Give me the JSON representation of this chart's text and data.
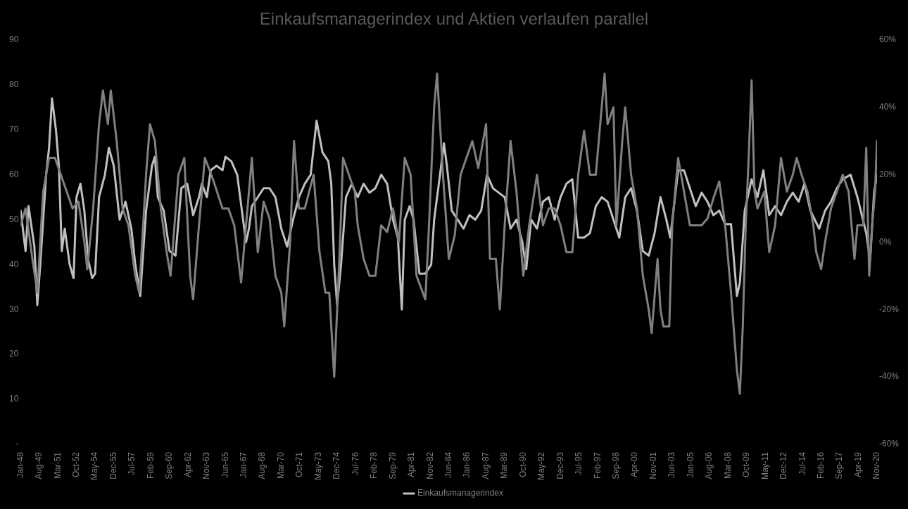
{
  "chart_data": {
    "type": "line",
    "title": "Einkaufsmanagerindex und Aktien verlaufen parallel",
    "legend": "bottom",
    "grid": false,
    "marker": "none",
    "line_style": "solid",
    "xlim": [
      "1948-01",
      "2020-11"
    ],
    "xticks": [
      {
        "value": "1948-01",
        "label": "Jan-48"
      },
      {
        "value": "1949-08",
        "label": "Aug-49"
      },
      {
        "value": "1951-03",
        "label": "Mar-51"
      },
      {
        "value": "1952-10",
        "label": "Oct-52"
      },
      {
        "value": "1954-05",
        "label": "May-54"
      },
      {
        "value": "1955-12",
        "label": "Dec-55"
      },
      {
        "value": "1957-07",
        "label": "Jul-57"
      },
      {
        "value": "1959-02",
        "label": "Feb-59"
      },
      {
        "value": "1960-09",
        "label": "Sep-60"
      },
      {
        "value": "1962-04",
        "label": "Apr-62"
      },
      {
        "value": "1963-11",
        "label": "Nov-63"
      },
      {
        "value": "1965-06",
        "label": "Jun-65"
      },
      {
        "value": "1967-01",
        "label": "Jan-67"
      },
      {
        "value": "1968-08",
        "label": "Aug-68"
      },
      {
        "value": "1970-03",
        "label": "Mar-70"
      },
      {
        "value": "1971-10",
        "label": "Oct-71"
      },
      {
        "value": "1973-05",
        "label": "May-73"
      },
      {
        "value": "1974-12",
        "label": "Dec-74"
      },
      {
        "value": "1976-07",
        "label": "Jul-76"
      },
      {
        "value": "1978-02",
        "label": "Feb-78"
      },
      {
        "value": "1979-09",
        "label": "Sep-79"
      },
      {
        "value": "1981-04",
        "label": "Apr-81"
      },
      {
        "value": "1982-11",
        "label": "Nov-82"
      },
      {
        "value": "1984-06",
        "label": "Jun-84"
      },
      {
        "value": "1986-01",
        "label": "Jan-86"
      },
      {
        "value": "1987-08",
        "label": "Aug-87"
      },
      {
        "value": "1989-03",
        "label": "Mar-89"
      },
      {
        "value": "1990-10",
        "label": "Oct-90"
      },
      {
        "value": "1992-05",
        "label": "May-92"
      },
      {
        "value": "1993-12",
        "label": "Dec-93"
      },
      {
        "value": "1995-07",
        "label": "Jul-95"
      },
      {
        "value": "1997-02",
        "label": "Feb-97"
      },
      {
        "value": "1998-09",
        "label": "Sep-98"
      },
      {
        "value": "2000-04",
        "label": "Apr-00"
      },
      {
        "value": "2001-11",
        "label": "Nov-01"
      },
      {
        "value": "2003-06",
        "label": "Jun-03"
      },
      {
        "value": "2005-01",
        "label": "Jan-05"
      },
      {
        "value": "2006-08",
        "label": "Aug-06"
      },
      {
        "value": "2008-03",
        "label": "Mar-08"
      },
      {
        "value": "2009-10",
        "label": "Oct-09"
      },
      {
        "value": "2011-05",
        "label": "May-11"
      },
      {
        "value": "2012-12",
        "label": "Dec-12"
      },
      {
        "value": "2014-07",
        "label": "Jul-14"
      },
      {
        "value": "2016-02",
        "label": "Feb-16"
      },
      {
        "value": "2017-09",
        "label": "Sep-17"
      },
      {
        "value": "2019-04",
        "label": "Apr-19"
      },
      {
        "value": "2020-11",
        "label": "Nov-20"
      }
    ],
    "ylim": [
      0,
      90
    ],
    "yticks": [
      {
        "value": 0,
        "label": "-"
      },
      10,
      20,
      30,
      40,
      50,
      60,
      70,
      80,
      90
    ],
    "y2lim": [
      -60,
      60
    ],
    "y2ticks": [
      {
        "value": -60,
        "label": "-60%"
      },
      {
        "value": -40,
        "label": "-40%"
      },
      {
        "value": -20,
        "label": "-20%"
      },
      {
        "value": 0,
        "label": "0%"
      },
      {
        "value": 20,
        "label": "20%"
      },
      {
        "value": 40,
        "label": "40%"
      },
      {
        "value": 60,
        "label": "60%"
      }
    ],
    "series": [
      {
        "name": "Einkaufsmanagerindex",
        "color": "#c0c0c0",
        "x": [
          "1948-01",
          "1948-06",
          "1948-09",
          "1949-03",
          "1949-06",
          "1949-09",
          "1950-03",
          "1950-06",
          "1950-09",
          "1951-01",
          "1951-04",
          "1951-07",
          "1951-10",
          "1952-03",
          "1952-07",
          "1952-10",
          "1953-02",
          "1953-06",
          "1953-10",
          "1954-02",
          "1954-05",
          "1954-09",
          "1955-03",
          "1955-07",
          "1955-12",
          "1956-06",
          "1956-12",
          "1957-06",
          "1957-10",
          "1958-03",
          "1958-09",
          "1959-03",
          "1959-06",
          "1959-09",
          "1960-03",
          "1960-09",
          "1961-03",
          "1961-09",
          "1962-03",
          "1962-09",
          "1963-03",
          "1963-06",
          "1963-11",
          "1964-03",
          "1964-09",
          "1965-03",
          "1965-06",
          "1965-12",
          "1966-06",
          "1966-09",
          "1967-03",
          "1967-06",
          "1967-09",
          "1968-03",
          "1968-09",
          "1969-03",
          "1969-09",
          "1970-03",
          "1970-09",
          "1971-03",
          "1971-09",
          "1972-03",
          "1972-09",
          "1973-01",
          "1973-03",
          "1973-09",
          "1974-03",
          "1974-06",
          "1974-09",
          "1974-12",
          "1975-04",
          "1975-09",
          "1976-03",
          "1976-09",
          "1977-03",
          "1977-09",
          "1978-03",
          "1978-09",
          "1979-03",
          "1979-09",
          "1980-02",
          "1980-06",
          "1980-09",
          "1981-02",
          "1981-06",
          "1981-12",
          "1982-06",
          "1982-12",
          "1983-03",
          "1983-09",
          "1984-01",
          "1984-04",
          "1984-09",
          "1985-03",
          "1985-09",
          "1986-03",
          "1986-09",
          "1987-03",
          "1987-09",
          "1988-03",
          "1988-09",
          "1989-03",
          "1989-09",
          "1990-03",
          "1990-09",
          "1991-01",
          "1991-06",
          "1991-12",
          "1992-06",
          "1992-12",
          "1993-06",
          "1993-12",
          "1994-06",
          "1994-12",
          "1995-06",
          "1995-12",
          "1996-06",
          "1996-12",
          "1997-06",
          "1997-12",
          "1998-06",
          "1998-12",
          "1999-06",
          "1999-12",
          "2000-06",
          "2000-12",
          "2001-06",
          "2001-12",
          "2002-06",
          "2002-12",
          "2003-04",
          "2003-12",
          "2004-06",
          "2004-12",
          "2005-06",
          "2005-12",
          "2006-06",
          "2006-12",
          "2007-06",
          "2007-12",
          "2008-06",
          "2008-12",
          "2009-03",
          "2009-08",
          "2010-03",
          "2010-09",
          "2011-03",
          "2011-09",
          "2012-03",
          "2012-09",
          "2013-03",
          "2013-09",
          "2014-03",
          "2014-09",
          "2015-03",
          "2015-12",
          "2016-06",
          "2016-12",
          "2017-06",
          "2017-12",
          "2018-08",
          "2019-03",
          "2019-12",
          "2020-04",
          "2020-08",
          "2020-11"
        ],
        "values": [
          52,
          43,
          53,
          44,
          31,
          40,
          60,
          66,
          77,
          70,
          62,
          43,
          48,
          40,
          37,
          55,
          58,
          52,
          41,
          37,
          38,
          55,
          60,
          66,
          62,
          50,
          54,
          48,
          40,
          33,
          52,
          62,
          64,
          55,
          52,
          43,
          42,
          57,
          58,
          51,
          55,
          58,
          55,
          61,
          62,
          61,
          64,
          63,
          60,
          55,
          45,
          48,
          53,
          55,
          57,
          57,
          55,
          48,
          44,
          50,
          55,
          58,
          60,
          68,
          72,
          65,
          63,
          58,
          40,
          31,
          40,
          55,
          58,
          55,
          58,
          56,
          57,
          60,
          58,
          50,
          46,
          30,
          50,
          53,
          50,
          38,
          38,
          40,
          50,
          60,
          67,
          62,
          52,
          50,
          48,
          51,
          50,
          52,
          60,
          57,
          56,
          55,
          48,
          50,
          45,
          39,
          50,
          48,
          54,
          55,
          50,
          55,
          58,
          59,
          46,
          46,
          47,
          53,
          55,
          54,
          50,
          46,
          55,
          57,
          52,
          43,
          42,
          47,
          55,
          50,
          46,
          61,
          61,
          57,
          53,
          56,
          54,
          51,
          52,
          49,
          49,
          33,
          36,
          52,
          59,
          55,
          61,
          51,
          53,
          51,
          54,
          56,
          54,
          58,
          52,
          48,
          52,
          54,
          57,
          59,
          60,
          55,
          47,
          41,
          56,
          60
        ]
      },
      {
        "color": "#808080",
        "axis": "y2",
        "x": [
          "1948-01",
          "1948-06",
          "1949-01",
          "1949-06",
          "1949-12",
          "1950-06",
          "1950-12",
          "1951-06",
          "1951-12",
          "1952-06",
          "1952-12",
          "1953-06",
          "1953-09",
          "1954-03",
          "1954-09",
          "1955-01",
          "1955-06",
          "1955-09",
          "1956-03",
          "1956-09",
          "1957-03",
          "1957-10",
          "1958-02",
          "1958-09",
          "1959-01",
          "1959-06",
          "1959-12",
          "1960-06",
          "1960-10",
          "1961-06",
          "1961-12",
          "1962-06",
          "1962-09",
          "1963-03",
          "1963-09",
          "1964-01",
          "1964-06",
          "1965-03",
          "1965-09",
          "1966-03",
          "1966-10",
          "1967-03",
          "1967-09",
          "1968-03",
          "1968-09",
          "1969-03",
          "1969-09",
          "1970-03",
          "1970-06",
          "1970-12",
          "1971-04",
          "1971-09",
          "1972-03",
          "1972-12",
          "1973-06",
          "1973-12",
          "1974-04",
          "1974-09",
          "1975-03",
          "1975-06",
          "1975-12",
          "1976-06",
          "1976-09",
          "1977-03",
          "1977-09",
          "1978-03",
          "1978-09",
          "1979-03",
          "1979-09",
          "1980-03",
          "1980-09",
          "1981-03",
          "1981-09",
          "1982-06",
          "1982-09",
          "1983-03",
          "1983-06",
          "1983-12",
          "1984-06",
          "1984-12",
          "1985-06",
          "1985-12",
          "1986-06",
          "1986-12",
          "1987-08",
          "1987-12",
          "1988-06",
          "1988-10",
          "1989-03",
          "1989-09",
          "1990-03",
          "1990-10",
          "1991-04",
          "1991-12",
          "1992-06",
          "1992-12",
          "1993-06",
          "1993-12",
          "1994-06",
          "1994-12",
          "1995-06",
          "1995-12",
          "1996-06",
          "1996-12",
          "1997-06",
          "1997-09",
          "1997-12",
          "1998-06",
          "1998-09",
          "1999-03",
          "1999-06",
          "1999-12",
          "2000-06",
          "2000-12",
          "2001-06",
          "2001-09",
          "2002-03",
          "2002-06",
          "2002-09",
          "2003-03",
          "2003-06",
          "2003-12",
          "2004-06",
          "2004-12",
          "2005-06",
          "2005-12",
          "2006-06",
          "2006-12",
          "2007-06",
          "2007-12",
          "2008-06",
          "2008-12",
          "2009-03",
          "2009-06",
          "2009-09",
          "2009-12",
          "2010-03",
          "2010-06",
          "2010-09",
          "2011-04",
          "2011-09",
          "2012-03",
          "2012-09",
          "2013-03",
          "2013-09",
          "2014-01",
          "2014-06",
          "2014-12",
          "2015-06",
          "2015-09",
          "2016-02",
          "2016-06",
          "2016-12",
          "2017-06",
          "2017-12",
          "2018-06",
          "2018-12",
          "2019-03",
          "2019-09",
          "2019-12",
          "2020-03",
          "2020-06",
          "2020-09",
          "2020-11"
        ],
        "values": [
          5,
          10,
          -5,
          -15,
          15,
          25,
          25,
          20,
          15,
          10,
          12,
          0,
          -8,
          10,
          35,
          45,
          35,
          45,
          30,
          10,
          5,
          -10,
          -15,
          20,
          35,
          30,
          10,
          -3,
          -10,
          20,
          25,
          -10,
          -17,
          5,
          25,
          22,
          18,
          10,
          10,
          5,
          -12,
          5,
          25,
          -3,
          12,
          7,
          -10,
          -15,
          -25,
          0,
          30,
          10,
          10,
          20,
          -3,
          -15,
          -15,
          -40,
          0,
          25,
          20,
          15,
          5,
          -5,
          -10,
          -10,
          5,
          3,
          10,
          0,
          25,
          20,
          -10,
          -17,
          0,
          40,
          50,
          20,
          -5,
          2,
          20,
          25,
          30,
          22,
          35,
          -5,
          -5,
          -20,
          5,
          30,
          15,
          -10,
          5,
          20,
          5,
          10,
          10,
          5,
          -3,
          -3,
          20,
          33,
          20,
          20,
          40,
          50,
          35,
          40,
          5,
          30,
          40,
          20,
          10,
          -10,
          -20,
          -27,
          -5,
          -20,
          -25,
          -25,
          5,
          25,
          15,
          5,
          5,
          5,
          7,
          13,
          18,
          5,
          -15,
          -38,
          -45,
          -25,
          5,
          25,
          48,
          15,
          10,
          15,
          -3,
          5,
          25,
          15,
          20,
          25,
          20,
          15,
          5,
          -3,
          -8,
          0,
          10,
          15,
          20,
          15,
          -5,
          5,
          5,
          28,
          -10,
          5,
          15,
          30
        ]
      }
    ]
  }
}
